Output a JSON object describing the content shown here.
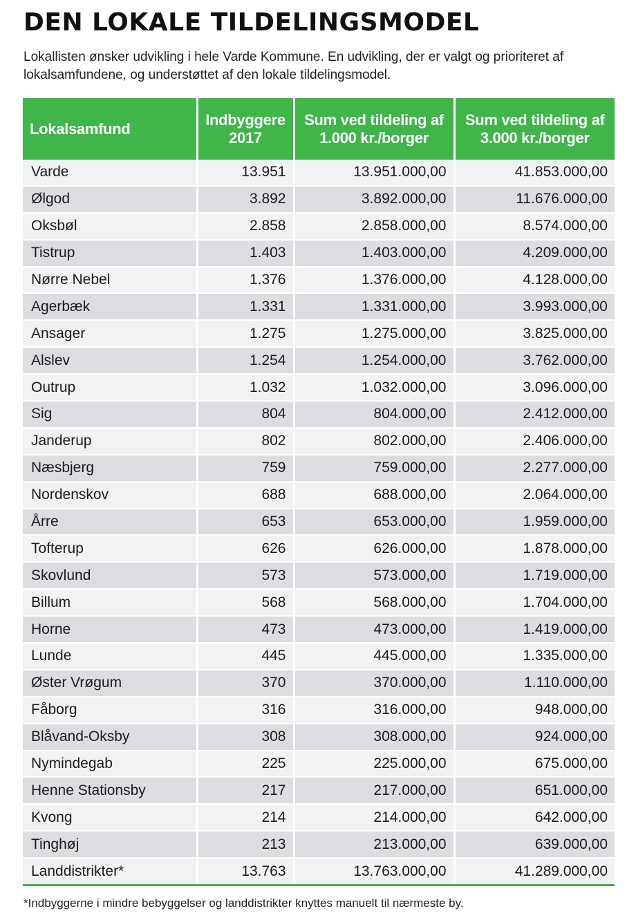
{
  "title": "DEN LOKALE TILDELINGSMODEL",
  "intro": "Lokallisten ønsker udvikling i hele Varde Kommune. En udvikling, der er valgt og prioriteret af lokalsamfundene, og understøttet af den lokale tildelingsmodel.",
  "table": {
    "headers": [
      "Lokalsamfund",
      "Indbyggere 2017",
      "Sum ved tildeling af 1.000 kr./borger",
      "Sum ved tildeling af 3.000 kr./borger"
    ],
    "rows": [
      [
        "Varde",
        "13.951",
        "13.951.000,00",
        "41.853.000,00"
      ],
      [
        "Ølgod",
        "3.892",
        "3.892.000,00",
        "11.676.000,00"
      ],
      [
        "Oksbøl",
        "2.858",
        "2.858.000,00",
        "8.574.000,00"
      ],
      [
        "Tistrup",
        "1.403",
        "1.403.000,00",
        "4.209.000,00"
      ],
      [
        "Nørre Nebel",
        "1.376",
        "1.376.000,00",
        "4.128.000,00"
      ],
      [
        "Agerbæk",
        "1.331",
        "1.331.000,00",
        "3.993.000,00"
      ],
      [
        "Ansager",
        "1.275",
        "1.275.000,00",
        "3.825.000,00"
      ],
      [
        "Alslev",
        "1.254",
        "1.254.000,00",
        "3.762.000,00"
      ],
      [
        "Outrup",
        "1.032",
        "1.032.000,00",
        "3.096.000,00"
      ],
      [
        "Sig",
        "804",
        "804.000,00",
        "2.412.000,00"
      ],
      [
        "Janderup",
        "802",
        "802.000,00",
        "2.406.000,00"
      ],
      [
        "Næsbjerg",
        "759",
        "759.000,00",
        "2.277.000,00"
      ],
      [
        "Nordenskov",
        "688",
        "688.000,00",
        "2.064.000,00"
      ],
      [
        "Årre",
        "653",
        "653.000,00",
        "1.959.000,00"
      ],
      [
        "Tofterup",
        "626",
        "626.000,00",
        "1.878.000,00"
      ],
      [
        "Skovlund",
        "573",
        "573.000,00",
        "1.719.000,00"
      ],
      [
        "Billum",
        "568",
        "568.000,00",
        "1.704.000,00"
      ],
      [
        "Horne",
        "473",
        "473.000,00",
        "1.419.000,00"
      ],
      [
        "Lunde",
        "445",
        "445.000,00",
        "1.335.000,00"
      ],
      [
        "Øster Vrøgum",
        "370",
        "370.000,00",
        "1.110.000,00"
      ],
      [
        "Fåborg",
        "316",
        "316.000,00",
        "948.000,00"
      ],
      [
        "Blåvand-Oksby",
        "308",
        "308.000,00",
        "924.000,00"
      ],
      [
        "Nymindegab",
        "225",
        "225.000,00",
        "675.000,00"
      ],
      [
        "Henne Stationsby",
        "217",
        "217.000,00",
        "651.000,00"
      ],
      [
        "Kvong",
        "214",
        "214.000,00",
        "642.000,00"
      ],
      [
        "Tinghøj",
        "213",
        "213.000,00",
        "639.000,00"
      ],
      [
        "Landdistrikter*",
        "13.763",
        "13.763.000,00",
        "41.289.000,00"
      ]
    ]
  },
  "footnote": "*Indbyggerne i mindre bebyggelser og landdistrikter knyttes manuelt til nærmeste by.",
  "colors": {
    "header_green": "#3fb54a",
    "row_light": "#f1f2f2",
    "row_dark": "#dcdde0"
  }
}
